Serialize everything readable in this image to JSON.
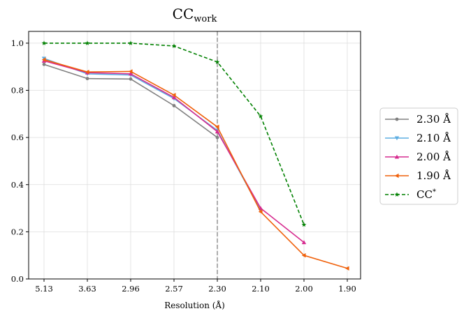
{
  "chart_data": {
    "type": "line",
    "title": "CC",
    "title_subscript": "work",
    "xlabel": "Resolution (Å)",
    "ylabel": "",
    "categories": [
      "5.13",
      "3.63",
      "2.96",
      "2.57",
      "2.30",
      "2.10",
      "2.00",
      "1.90"
    ],
    "ylim": [
      0,
      1.05
    ],
    "yticks": [
      "0.0",
      "0.2",
      "0.4",
      "0.6",
      "0.8",
      "1.0"
    ],
    "ytick_values": [
      0,
      0.2,
      0.4,
      0.6,
      0.8,
      1.0
    ],
    "grid": true,
    "legend_position": "right",
    "vline": {
      "category_index": 4,
      "color": "#999999",
      "style": "dashed"
    },
    "series": [
      {
        "name": "2.30 Å",
        "color": "#808080",
        "marker": "circle",
        "dashed": false,
        "values": [
          0.91,
          0.85,
          0.848,
          0.735,
          0.6,
          null,
          null,
          null
        ]
      },
      {
        "name": "2.10 Å",
        "color": "#5dade2",
        "marker": "triangle-down",
        "dashed": false,
        "values": [
          0.935,
          0.87,
          0.865,
          0.765,
          0.63,
          0.29,
          null,
          null
        ]
      },
      {
        "name": "2.00 Å",
        "color": "#d62b8f",
        "marker": "triangle-up",
        "dashed": false,
        "values": [
          0.925,
          0.875,
          0.87,
          0.77,
          0.625,
          0.3,
          0.155,
          null
        ]
      },
      {
        "name": "1.90 Å",
        "color": "#f0600a",
        "marker": "triangle-left",
        "dashed": false,
        "values": [
          0.93,
          0.878,
          0.88,
          0.78,
          0.645,
          0.285,
          0.1,
          0.045
        ]
      },
      {
        "name": "CC",
        "name_superscript": "*",
        "color": "#008000",
        "marker": "star",
        "dashed": true,
        "values": [
          1.0,
          1.0,
          1.0,
          0.988,
          0.92,
          0.69,
          0.23,
          null
        ]
      }
    ]
  }
}
